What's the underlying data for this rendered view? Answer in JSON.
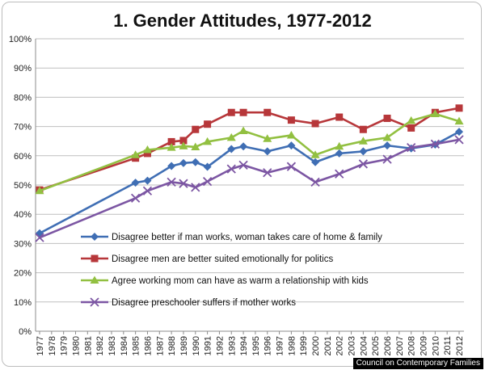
{
  "chart_data": {
    "type": "line",
    "title": "1. Gender Attitudes, 1977-2012",
    "x_ticks": [
      "1977",
      "1978",
      "1979",
      "1980",
      "1981",
      "1982",
      "1983",
      "1984",
      "1985",
      "1986",
      "1987",
      "1988",
      "1989",
      "1990",
      "1991",
      "1992",
      "1993",
      "1994",
      "1995",
      "1996",
      "1997",
      "1998",
      "1999",
      "2000",
      "2001",
      "2002",
      "2003",
      "2004",
      "2005",
      "2006",
      "2007",
      "2008",
      "2009",
      "2010",
      "2011",
      "2012"
    ],
    "y_ticks": [
      "0%",
      "10%",
      "20%",
      "30%",
      "40%",
      "50%",
      "60%",
      "70%",
      "80%",
      "90%",
      "100%"
    ],
    "ylim": [
      0,
      100
    ],
    "xlim": [
      1977,
      2012
    ],
    "grid": "horizontal",
    "legend_position": "inside-bottom-center",
    "series": [
      {
        "name": "Disagree better if man works, woman takes care of home & family",
        "color": "#3f6eb4",
        "marker": "diamond",
        "x": [
          1977,
          1985,
          1986,
          1988,
          1989,
          1990,
          1991,
          1993,
          1994,
          1996,
          1998,
          2000,
          2002,
          2004,
          2006,
          2008,
          2010,
          2012
        ],
        "values": [
          33.5,
          50.8,
          51.5,
          56.5,
          57.5,
          57.8,
          56.2,
          62.3,
          63.2,
          61.5,
          63.5,
          57.8,
          60.8,
          61.5,
          63.5,
          62.5,
          63.8,
          68.2
        ]
      },
      {
        "name": "Disagree men are better suited emotionally for politics",
        "color": "#b7373a",
        "marker": "square",
        "x": [
          1977,
          1985,
          1986,
          1988,
          1989,
          1990,
          1991,
          1993,
          1994,
          1996,
          1998,
          2000,
          2002,
          2004,
          2006,
          2008,
          2010,
          2012
        ],
        "values": [
          48.3,
          59.2,
          60.8,
          64.8,
          65.2,
          69.0,
          70.8,
          74.8,
          74.8,
          74.8,
          72.2,
          71.0,
          73.2,
          69.0,
          72.8,
          69.5,
          74.8,
          76.3
        ]
      },
      {
        "name": "Agree working mom can have as warm a relationship with kids",
        "color": "#92c041",
        "marker": "triangle",
        "x": [
          1977,
          1985,
          1986,
          1988,
          1989,
          1990,
          1991,
          1993,
          1994,
          1996,
          1998,
          2000,
          2002,
          2004,
          2006,
          2008,
          2010,
          2012
        ],
        "values": [
          48.0,
          60.3,
          62.0,
          62.8,
          63.3,
          63.0,
          64.8,
          66.2,
          68.5,
          65.8,
          67.0,
          60.3,
          63.2,
          65.0,
          66.2,
          72.0,
          74.3,
          71.8
        ]
      },
      {
        "name": "Disagree preschooler suffers if mother works",
        "color": "#7c56a3",
        "marker": "x",
        "x": [
          1977,
          1985,
          1986,
          1988,
          1989,
          1990,
          1991,
          1993,
          1994,
          1996,
          1998,
          2000,
          2002,
          2004,
          2006,
          2008,
          2010,
          2012
        ],
        "values": [
          32.0,
          45.5,
          48.0,
          51.0,
          50.5,
          49.2,
          51.2,
          55.5,
          56.8,
          54.2,
          56.3,
          51.0,
          53.8,
          57.2,
          58.8,
          62.8,
          64.0,
          65.5
        ]
      }
    ],
    "credit": "Council on Contemporary Families"
  }
}
